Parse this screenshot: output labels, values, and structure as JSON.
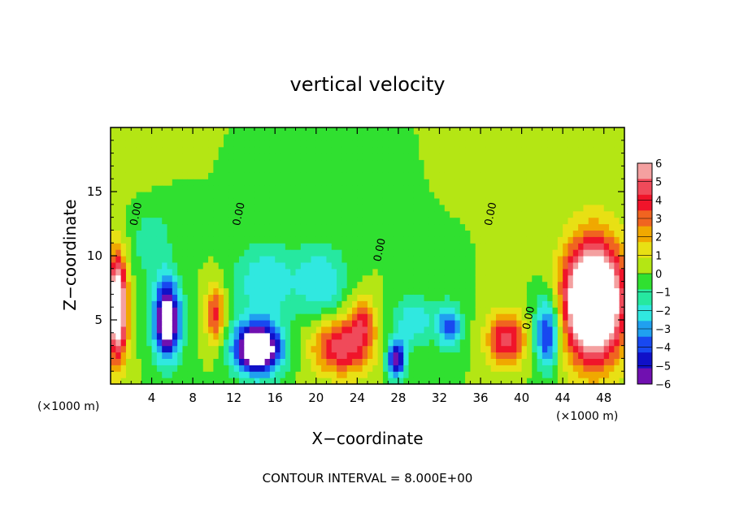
{
  "chart_data": {
    "type": "heatmap",
    "title": "vertical velocity",
    "xlabel": "X−coordinate",
    "ylabel": "Z−coordinate",
    "x_unit_left": "(×1000 m)",
    "x_unit_right": "(×1000 m)",
    "footer": "CONTOUR INTERVAL = 8.000E+00",
    "xlim": [
      0,
      50
    ],
    "ylim": [
      0,
      20
    ],
    "x_ticks": [
      4,
      8,
      12,
      16,
      20,
      24,
      28,
      32,
      36,
      40,
      44,
      48
    ],
    "x_tick_labels": [
      "4",
      "8",
      "12",
      "16",
      "20",
      "24",
      "28",
      "32",
      "36",
      "40",
      "44",
      "48"
    ],
    "y_ticks": [
      5,
      10,
      15
    ],
    "y_tick_labels": [
      "5",
      "10",
      "15"
    ],
    "contour_label": "0.00",
    "colorbar": {
      "range": [
        -6,
        6
      ],
      "tick_labels": [
        "6",
        "5",
        "4",
        "3",
        "2",
        "1",
        "0",
        "−1",
        "−2",
        "−3",
        "−4",
        "−5",
        "−6"
      ],
      "colors": [
        "#f4a0a0",
        "#f04a5a",
        "#f0142a",
        "#f06420",
        "#f0a800",
        "#e8e014",
        "#b4e614",
        "#30e030",
        "#26e8a0",
        "#30e8e0",
        "#20a0f0",
        "#1848f0",
        "#1010c8",
        "#7010b0"
      ]
    },
    "features": [
      {
        "sign": "positive",
        "x": 0.6,
        "z": 6,
        "strength": 9,
        "sx": 1.0,
        "sz": 4.0
      },
      {
        "sign": "negative",
        "x": 5.5,
        "z": 5,
        "strength": -8,
        "sx": 1.3,
        "sz": 3.0
      },
      {
        "sign": "positive",
        "x": 10.2,
        "z": 5.5,
        "strength": 4,
        "sx": 0.9,
        "sz": 2.3
      },
      {
        "sign": "negative",
        "x": 14.3,
        "z": 2.8,
        "strength": -9,
        "sx": 2.3,
        "sz": 2.0
      },
      {
        "sign": "negative",
        "x": 15.0,
        "z": 8.0,
        "strength": -2.5,
        "sx": 3.0,
        "sz": 3.0
      },
      {
        "sign": "positive",
        "x": 22.5,
        "z": 3.0,
        "strength": 5,
        "sx": 2.8,
        "sz": 2.2
      },
      {
        "sign": "positive",
        "x": 24.5,
        "z": 5.0,
        "strength": 3,
        "sx": 1.2,
        "sz": 2.0
      },
      {
        "sign": "negative",
        "x": 27.8,
        "z": 2.0,
        "strength": -6,
        "sx": 0.9,
        "sz": 1.5
      },
      {
        "sign": "negative",
        "x": 33.0,
        "z": 4.5,
        "strength": -4,
        "sx": 1.2,
        "sz": 1.8
      },
      {
        "sign": "negative",
        "x": 29.5,
        "z": 5.0,
        "strength": -2.5,
        "sx": 2.0,
        "sz": 2.0
      },
      {
        "sign": "positive",
        "x": 38.5,
        "z": 3.5,
        "strength": 5,
        "sx": 1.8,
        "sz": 2.0
      },
      {
        "sign": "negative",
        "x": 42.5,
        "z": 4.0,
        "strength": -5,
        "sx": 1.2,
        "sz": 2.8
      },
      {
        "sign": "positive",
        "x": 47.0,
        "z": 6.5,
        "strength": 12,
        "sx": 2.8,
        "sz": 4.5
      },
      {
        "sign": "negative",
        "x": 20.5,
        "z": 8.0,
        "strength": -2.5,
        "sx": 2.5,
        "sz": 3.0
      },
      {
        "sign": "negative",
        "x": 4.0,
        "z": 11.0,
        "strength": -1.5,
        "sx": 2.0,
        "sz": 3.0
      },
      {
        "sign": "positive",
        "x": 2.0,
        "z": 17.0,
        "strength": 0.8,
        "sx": 2.5,
        "sz": 2.0
      },
      {
        "sign": "positive",
        "x": 45.0,
        "z": 17.0,
        "strength": 0.8,
        "sx": 3.0,
        "sz": 2.0
      }
    ],
    "grid": false,
    "legend": "right"
  }
}
